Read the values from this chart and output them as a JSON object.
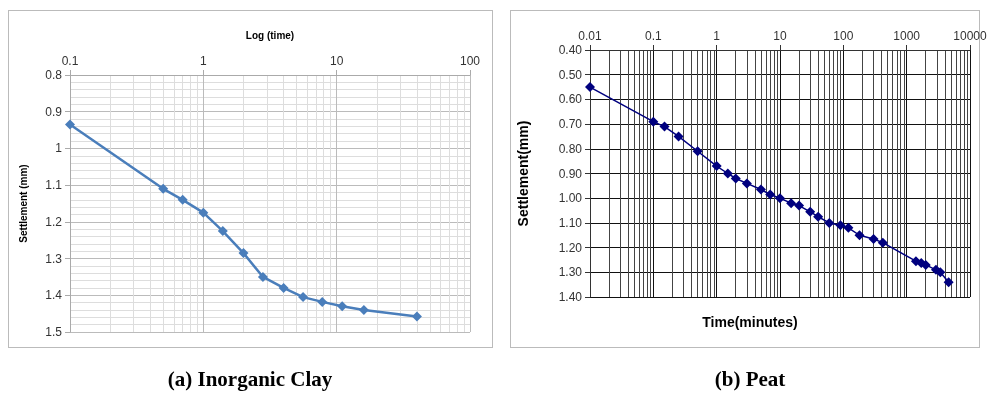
{
  "chart_data": [
    {
      "type": "line",
      "title": "(a) Inorganic Clay",
      "xlabel": "Log (time)",
      "ylabel": "Settlement (mm)",
      "log": "x",
      "grid": true,
      "marker": "diamond",
      "line_style": "solid",
      "xlim": [
        0.1,
        100
      ],
      "xticks": [
        0.1,
        1,
        10,
        100
      ],
      "ylim": [
        1.5,
        0.8
      ],
      "yticks": [
        0.8,
        0.9,
        1,
        1.1,
        1.2,
        1.3,
        1.4,
        1.5
      ],
      "x": [
        0.1,
        0.5,
        0.7,
        1,
        1.4,
        2,
        2.8,
        4,
        5.6,
        7.8,
        11,
        16,
        40
      ],
      "series": [
        {
          "color": "#4a7ebb",
          "values": [
            0.935,
            1.11,
            1.14,
            1.175,
            1.225,
            1.285,
            1.35,
            1.38,
            1.405,
            1.418,
            1.43,
            1.44,
            1.458
          ]
        }
      ]
    },
    {
      "type": "line",
      "title": "(b) Peat",
      "xlabel": "Time(minutes)",
      "ylabel": "Settlement(mm)",
      "log": "x",
      "grid": true,
      "marker": "diamond",
      "line_style": "solid",
      "xlim": [
        0.01,
        10000
      ],
      "xticks": [
        0.01,
        0.1,
        1,
        10,
        100,
        1000,
        10000
      ],
      "ylim": [
        1.4,
        0.4
      ],
      "yticks": [
        {
          "value": 0.4,
          "label": "0.40"
        },
        {
          "value": 0.5,
          "label": "0.50"
        },
        {
          "value": 0.6,
          "label": "0.60"
        },
        {
          "value": 0.7,
          "label": "0.70"
        },
        {
          "value": 0.8,
          "label": "0.80"
        },
        {
          "value": 0.9,
          "label": "0.90"
        },
        {
          "value": 1,
          "label": "1.00"
        },
        {
          "value": 1.1,
          "label": "1.10"
        },
        {
          "value": 1.2,
          "label": "1.20"
        },
        {
          "value": 1.3,
          "label": "1.30"
        },
        {
          "value": 1.4,
          "label": "1.40"
        }
      ],
      "x": [
        0.01,
        0.1,
        0.15,
        0.25,
        0.5,
        1,
        1.5,
        2,
        3,
        5,
        7,
        10,
        15,
        20,
        30,
        40,
        60,
        90,
        120,
        180,
        300,
        420,
        1400,
        1700,
        2000,
        2900,
        3400,
        4600
      ],
      "series": [
        {
          "color": "#00007f",
          "values": [
            0.55,
            0.69,
            0.71,
            0.75,
            0.81,
            0.87,
            0.9,
            0.92,
            0.94,
            0.965,
            0.985,
            1.0,
            1.02,
            1.03,
            1.055,
            1.075,
            1.1,
            1.11,
            1.12,
            1.15,
            1.165,
            1.18,
            1.255,
            1.262,
            1.27,
            1.29,
            1.3,
            1.34
          ]
        }
      ]
    }
  ]
}
